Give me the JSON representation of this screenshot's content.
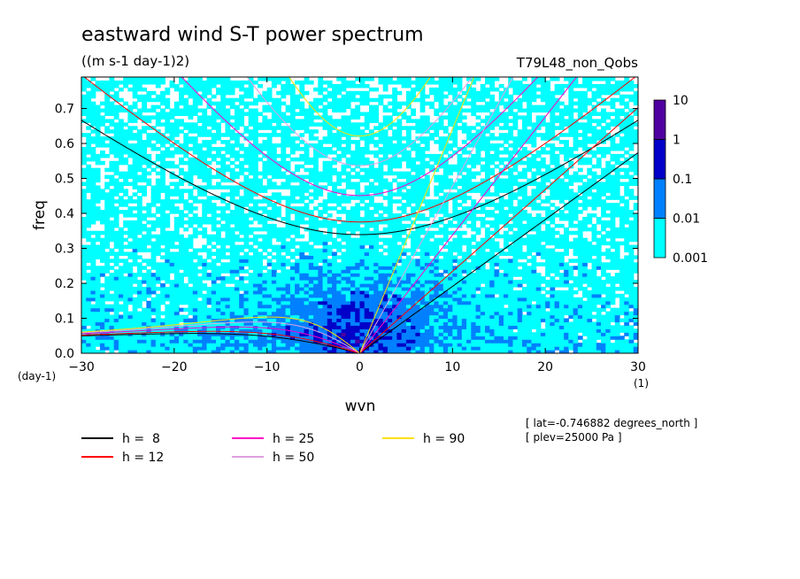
{
  "chart_data": {
    "type": "heatmap",
    "title": "eastward wind S-T power spectrum",
    "subtitle": "((m s-1 day-1)2)",
    "experiment": "T79L48_non_Qobs",
    "xlabel": "wvn",
    "ylabel": "freq",
    "x_unit": "(1)",
    "y_unit": "(day-1)",
    "xlim": [
      -30,
      30
    ],
    "ylim": [
      0,
      0.79
    ],
    "x_ticks": [
      -30,
      -20,
      -10,
      0,
      10,
      20,
      30
    ],
    "x_tick_labels": [
      "−30",
      "−20",
      "−10",
      "0",
      "10",
      "20",
      "30"
    ],
    "y_ticks": [
      0,
      0.1,
      0.2,
      0.3,
      0.4,
      0.5,
      0.6,
      0.7
    ],
    "y_tick_labels": [
      "0.0",
      "0.1",
      "0.2",
      "0.3",
      "0.4",
      "0.5",
      "0.6",
      "0.7"
    ],
    "colorbar": {
      "levels": [
        "0.001",
        "0.01",
        "0.1",
        "1",
        "10"
      ],
      "colors": [
        "#00ffff",
        "#0080ff",
        "#0000c8",
        "#5000a0"
      ],
      "log_scale": true
    },
    "dispersion_curves": [
      {
        "label": "h =  8",
        "h": 8,
        "color": "#000000"
      },
      {
        "label": "h = 12",
        "h": 12,
        "color": "#ff0000"
      },
      {
        "label": "h = 25",
        "h": 25,
        "color": "#ff00c8"
      },
      {
        "label": "h = 50",
        "h": 50,
        "color": "#e0a0e0"
      },
      {
        "label": "h = 90",
        "h": 90,
        "color": "#ffe000"
      }
    ],
    "annotations": [
      "[ lat=-0.746882 degrees_north ]",
      "[ plev=25000 Pa ]"
    ],
    "grid": false,
    "legend_position": "bottom"
  }
}
